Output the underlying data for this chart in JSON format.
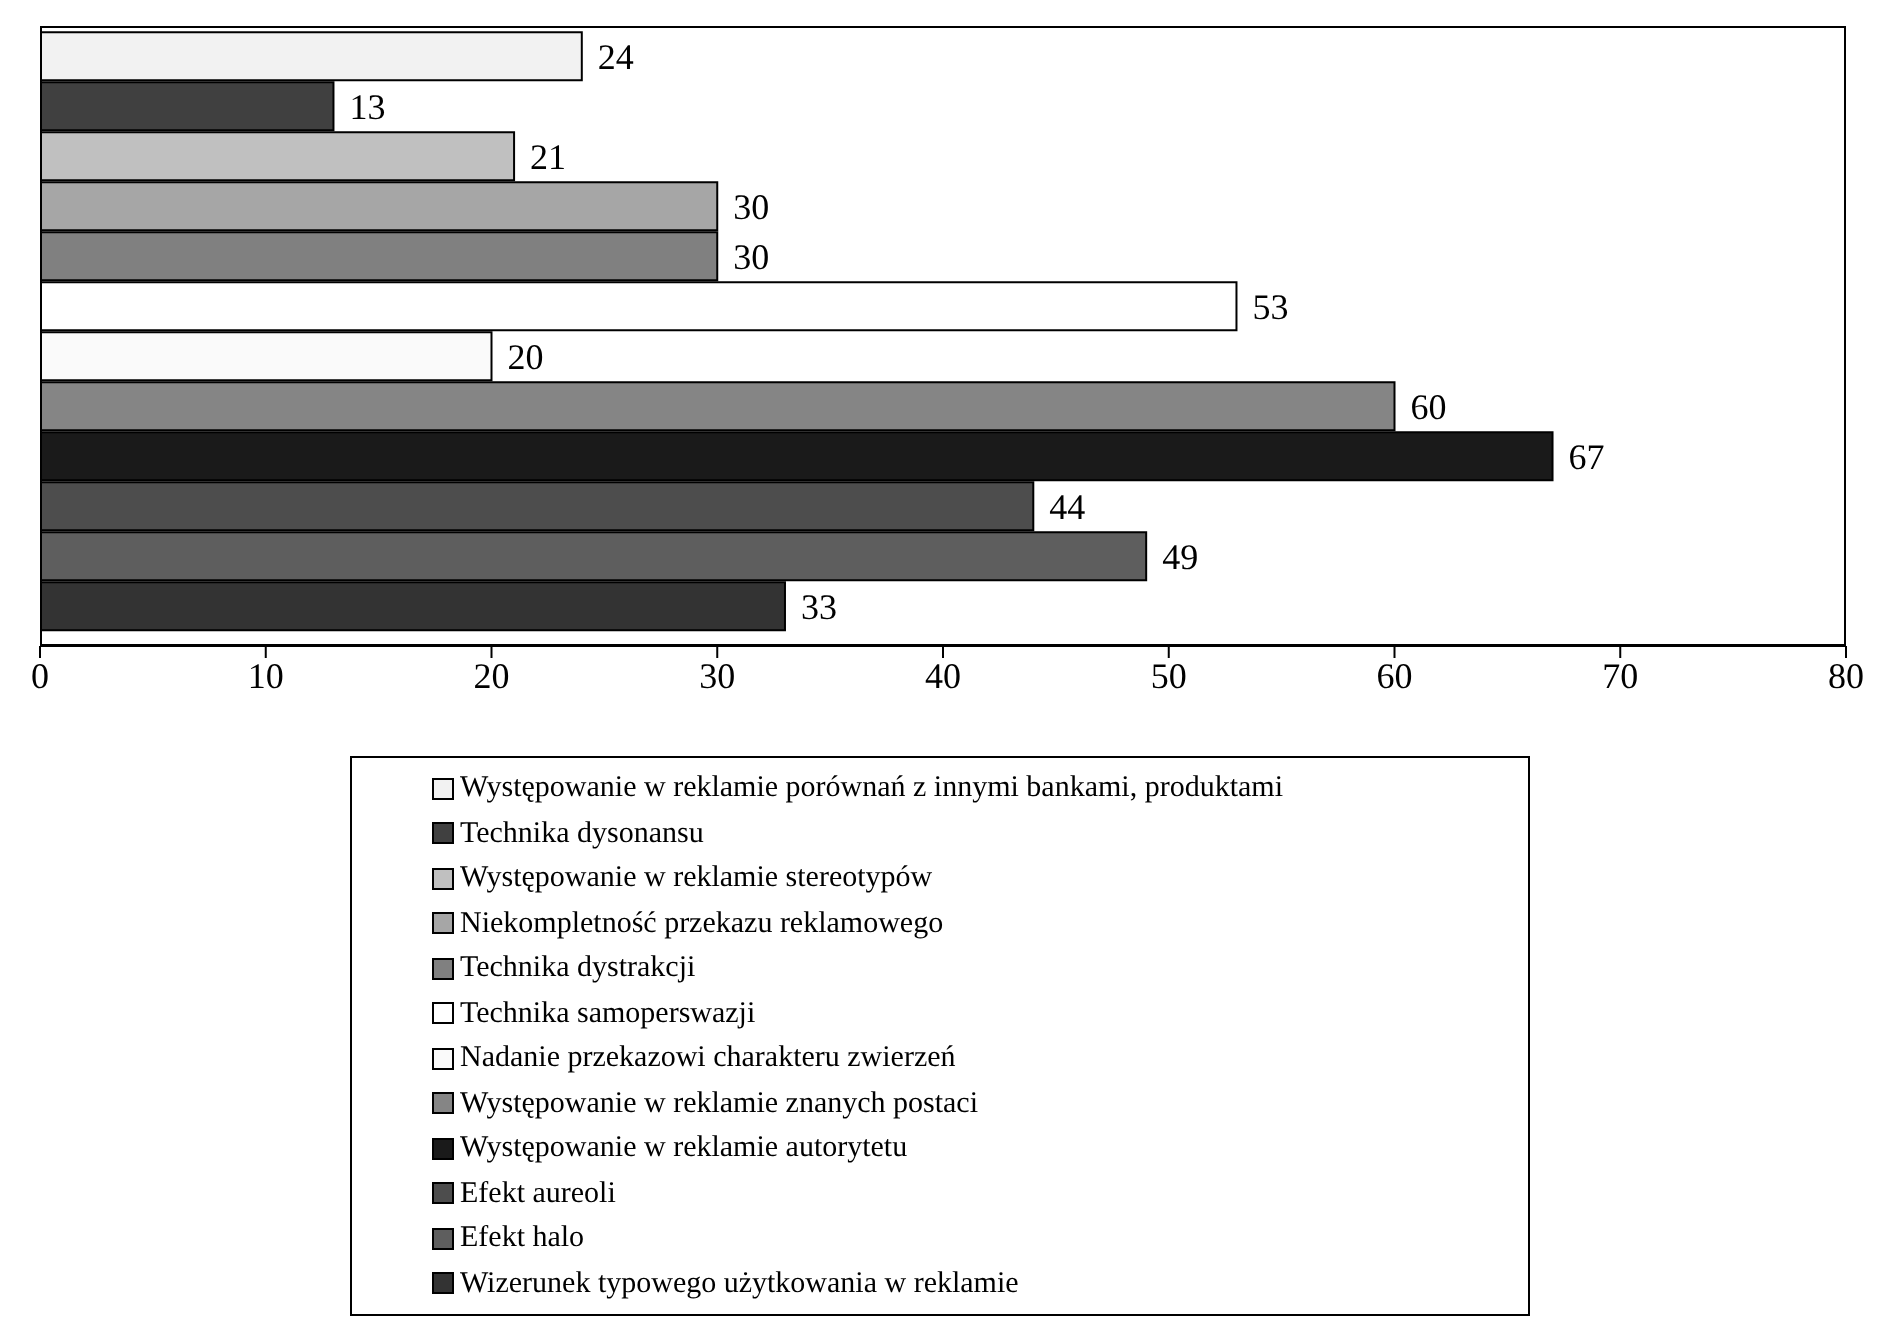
{
  "chart_data": {
    "type": "bar",
    "orientation": "horizontal",
    "categories": [
      null
    ],
    "xlim": [
      0,
      80
    ],
    "xticks": [
      0,
      10,
      20,
      30,
      40,
      50,
      60,
      70,
      80
    ],
    "grid": false,
    "legend": "bottom",
    "data_labels": true,
    "series": [
      {
        "name": "Występowanie w reklamie porównań z innymi bankami, produktami",
        "color": "#f2f2f2",
        "values": [
          24
        ]
      },
      {
        "name": "Technika dysonansu",
        "color": "#404040",
        "values": [
          13
        ]
      },
      {
        "name": "Występowanie w reklamie stereotypów",
        "color": "#c0c0c0",
        "values": [
          21
        ]
      },
      {
        "name": "Niekompletność przekazu reklamowego",
        "color": "#a6a6a6",
        "values": [
          30
        ]
      },
      {
        "name": "Technika dystrakcji",
        "color": "#808080",
        "values": [
          30
        ]
      },
      {
        "name": "Technika samoperswazji",
        "color": "#ffffff",
        "values": [
          53
        ]
      },
      {
        "name": "Nadanie przekazowi charakteru zwierzeń",
        "color": "#fafafa",
        "values": [
          20
        ]
      },
      {
        "name": "Występowanie w reklamie znanych postaci",
        "color": "#858585",
        "values": [
          60
        ]
      },
      {
        "name": "Występowanie w reklamie autorytetu",
        "color": "#1a1a1a",
        "values": [
          67
        ]
      },
      {
        "name": "Efekt aureoli",
        "color": "#4d4d4d",
        "values": [
          44
        ]
      },
      {
        "name": "Efekt halo",
        "color": "#5e5e5e",
        "values": [
          49
        ]
      },
      {
        "name": "Wizerunek typowego użytkowania w reklamie",
        "color": "#333333",
        "values": [
          33
        ]
      }
    ]
  }
}
